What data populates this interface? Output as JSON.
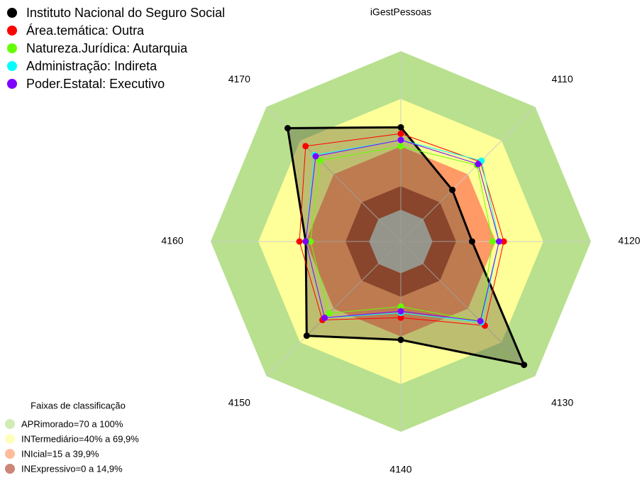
{
  "chart_data": {
    "type": "radar",
    "categories": [
      "iGestPessoas",
      "4110",
      "4120",
      "4130",
      "4140",
      "4150",
      "4160",
      "4170"
    ],
    "rlim": [
      -20,
      100
    ],
    "series": [
      {
        "name": "Instituto Nacional do Seguro Social",
        "color": "#000000",
        "values": [
          52,
          26,
          25,
          90,
          42,
          64,
          40,
          81
        ]
      },
      {
        "name": "Área.temática: Outra",
        "color": "#ff0000",
        "values": [
          48,
          51,
          45,
          55,
          28,
          50,
          44,
          65
        ]
      },
      {
        "name": "Natureza.Jurídica: Autarquia",
        "color": "#66ff00",
        "values": [
          40,
          48,
          38,
          51,
          21,
          44,
          37,
          52
        ]
      },
      {
        "name": "Administração: Indireta",
        "color": "#00ffff",
        "values": [
          44,
          52,
          42,
          52,
          25,
          48,
          40,
          57
        ]
      },
      {
        "name": "Poder.Estatal: Executivo",
        "color": "#8000ff",
        "values": [
          44,
          49,
          42,
          51,
          24,
          48,
          40,
          56
        ]
      }
    ],
    "bands_title": "Faixas de classificação",
    "bands": [
      {
        "name": "APRimorado=70 a 100%",
        "from": 70,
        "to": 100,
        "color": "#b8e08e"
      },
      {
        "name": "INTermediário=40% a 69,9%",
        "from": 40,
        "to": 69.9,
        "color": "#ffff99"
      },
      {
        "name": "INIcial=15 a 39,9%",
        "from": 15,
        "to": 39.9,
        "color": "#ff9966"
      },
      {
        "name": "INExpressivo=0 a 14,9%",
        "from": 0,
        "to": 14.9,
        "color": "#b04530"
      }
    ]
  }
}
